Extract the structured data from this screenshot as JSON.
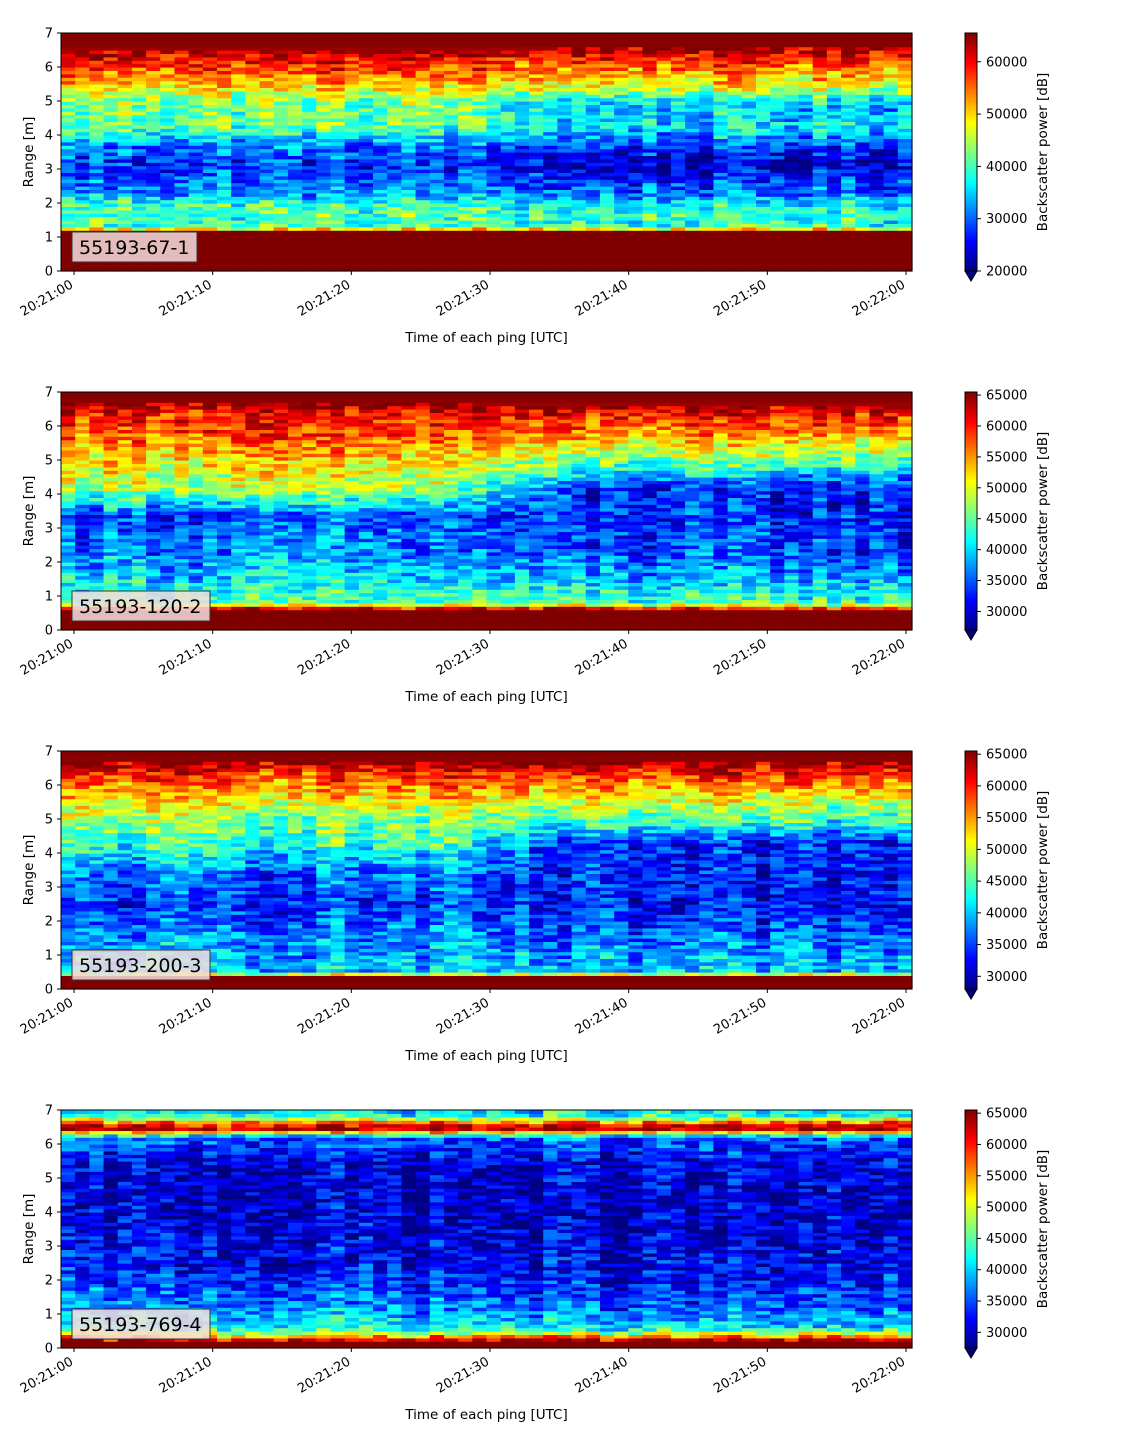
{
  "chart_data": [
    {
      "type": "heatmap",
      "label": "55193-67-1",
      "xlabel": "Time of each ping [UTC]",
      "ylabel": "Range [m]",
      "xticks": [
        "20:21:00",
        "20:21:10",
        "20:21:20",
        "20:21:30",
        "20:21:40",
        "20:21:50",
        "20:22:00"
      ],
      "ylim": [
        0,
        7
      ],
      "yticks": [
        "0",
        "1",
        "2",
        "3",
        "4",
        "5",
        "6",
        "7"
      ],
      "colorbar_label": "Backscatter power [dB]",
      "colorbar_ticks": [
        "20000",
        "30000",
        "40000",
        "50000",
        "60000"
      ],
      "colorbar_range": [
        20000,
        65500
      ],
      "profile": [
        [
          0.1,
          65500
        ],
        [
          1.15,
          65500
        ],
        [
          1.3,
          40000
        ],
        [
          1.9,
          41000
        ],
        [
          2.3,
          33000
        ],
        [
          3.1,
          28000
        ],
        [
          3.6,
          30000
        ],
        [
          4.2,
          41000
        ],
        [
          5.0,
          43000
        ],
        [
          5.7,
          54000
        ],
        [
          6.3,
          61000
        ],
        [
          6.6,
          65000
        ],
        [
          7.0,
          65500
        ]
      ],
      "profile_late": [
        [
          0.1,
          65500
        ],
        [
          1.15,
          65500
        ],
        [
          1.3,
          40000
        ],
        [
          1.9,
          38000
        ],
        [
          2.3,
          31000
        ],
        [
          3.1,
          24000
        ],
        [
          3.6,
          27000
        ],
        [
          4.2,
          36000
        ],
        [
          4.9,
          34000
        ],
        [
          5.4,
          47000
        ],
        [
          6.1,
          56000
        ],
        [
          6.6,
          65000
        ],
        [
          7.0,
          65500
        ]
      ]
    },
    {
      "type": "heatmap",
      "label": "55193-120-2",
      "xlabel": "Time of each ping [UTC]",
      "ylabel": "Range [m]",
      "xticks": [
        "20:21:00",
        "20:21:10",
        "20:21:20",
        "20:21:30",
        "20:21:40",
        "20:21:50",
        "20:22:00"
      ],
      "ylim": [
        0,
        7
      ],
      "yticks": [
        "0",
        "1",
        "2",
        "3",
        "4",
        "5",
        "6",
        "7"
      ],
      "colorbar_label": "Backscatter power [dB]",
      "colorbar_ticks": [
        "30000",
        "35000",
        "40000",
        "45000",
        "50000",
        "55000",
        "60000",
        "65000"
      ],
      "colorbar_range": [
        27000,
        65500
      ],
      "profile": [
        [
          0.1,
          65500
        ],
        [
          0.6,
          65500
        ],
        [
          0.8,
          44000
        ],
        [
          1.6,
          40000
        ],
        [
          2.5,
          36000
        ],
        [
          3.4,
          35000
        ],
        [
          4.2,
          48000
        ],
        [
          5.0,
          52000
        ],
        [
          5.7,
          57000
        ],
        [
          6.4,
          61000
        ],
        [
          6.7,
          65000
        ],
        [
          7.0,
          65500
        ]
      ],
      "profile_late": [
        [
          0.1,
          65500
        ],
        [
          0.6,
          65500
        ],
        [
          0.8,
          44000
        ],
        [
          1.6,
          38000
        ],
        [
          2.5,
          34000
        ],
        [
          3.4,
          33000
        ],
        [
          4.2,
          33000
        ],
        [
          4.8,
          43000
        ],
        [
          5.6,
          53000
        ],
        [
          6.3,
          60000
        ],
        [
          6.7,
          65000
        ],
        [
          7.0,
          65500
        ]
      ]
    },
    {
      "type": "heatmap",
      "label": "55193-200-3",
      "xlabel": "Time of each ping [UTC]",
      "ylabel": "Range [m]",
      "xticks": [
        "20:21:00",
        "20:21:10",
        "20:21:20",
        "20:21:30",
        "20:21:40",
        "20:21:50",
        "20:22:00"
      ],
      "ylim": [
        0,
        7
      ],
      "yticks": [
        "0",
        "1",
        "2",
        "3",
        "4",
        "5",
        "6",
        "7"
      ],
      "colorbar_label": "Backscatter power [dB]",
      "colorbar_ticks": [
        "30000",
        "35000",
        "40000",
        "45000",
        "50000",
        "55000",
        "60000",
        "65000"
      ],
      "colorbar_range": [
        28000,
        65500
      ],
      "profile": [
        [
          0.1,
          65500
        ],
        [
          0.35,
          65500
        ],
        [
          0.5,
          40000
        ],
        [
          1.5,
          38000
        ],
        [
          2.5,
          34000
        ],
        [
          3.5,
          37000
        ],
        [
          4.3,
          44000
        ],
        [
          5.0,
          47000
        ],
        [
          5.8,
          54000
        ],
        [
          6.4,
          60000
        ],
        [
          6.7,
          65000
        ],
        [
          7.0,
          65500
        ]
      ],
      "profile_late": [
        [
          0.1,
          65500
        ],
        [
          0.35,
          65500
        ],
        [
          0.5,
          40000
        ],
        [
          1.5,
          36000
        ],
        [
          2.5,
          32000
        ],
        [
          3.5,
          33000
        ],
        [
          4.3,
          33000
        ],
        [
          4.9,
          43000
        ],
        [
          5.6,
          50000
        ],
        [
          6.3,
          58000
        ],
        [
          6.7,
          65000
        ],
        [
          7.0,
          65500
        ]
      ]
    },
    {
      "type": "heatmap",
      "label": "55193-769-4",
      "xlabel": "Time of each ping [UTC]",
      "ylabel": "Range [m]",
      "xticks": [
        "20:21:00",
        "20:21:10",
        "20:21:20",
        "20:21:30",
        "20:21:40",
        "20:21:50",
        "20:22:00"
      ],
      "ylim": [
        0,
        7
      ],
      "yticks": [
        "0",
        "1",
        "2",
        "3",
        "4",
        "5",
        "6",
        "7"
      ],
      "colorbar_label": "Backscatter power [dB]",
      "colorbar_ticks": [
        "30000",
        "35000",
        "40000",
        "45000",
        "50000",
        "55000",
        "60000",
        "65000"
      ],
      "colorbar_range": [
        27500,
        65500
      ],
      "profile": [
        [
          0.05,
          65500
        ],
        [
          0.2,
          65500
        ],
        [
          0.35,
          55000
        ],
        [
          0.6,
          41000
        ],
        [
          1.5,
          36000
        ],
        [
          2.5,
          32000
        ],
        [
          3.5,
          31000
        ],
        [
          4.5,
          30000
        ],
        [
          5.5,
          31000
        ],
        [
          6.2,
          36000
        ],
        [
          6.45,
          63000
        ],
        [
          6.6,
          60000
        ],
        [
          6.8,
          44000
        ],
        [
          7.0,
          40000
        ]
      ],
      "profile_late": [
        [
          0.05,
          65500
        ],
        [
          0.2,
          65500
        ],
        [
          0.35,
          55000
        ],
        [
          0.6,
          40000
        ],
        [
          1.5,
          34000
        ],
        [
          2.5,
          31000
        ],
        [
          3.5,
          30000
        ],
        [
          4.5,
          30000
        ],
        [
          5.5,
          31000
        ],
        [
          6.2,
          36000
        ],
        [
          6.45,
          63000
        ],
        [
          6.6,
          60000
        ],
        [
          6.8,
          44000
        ],
        [
          7.0,
          40000
        ]
      ]
    }
  ]
}
